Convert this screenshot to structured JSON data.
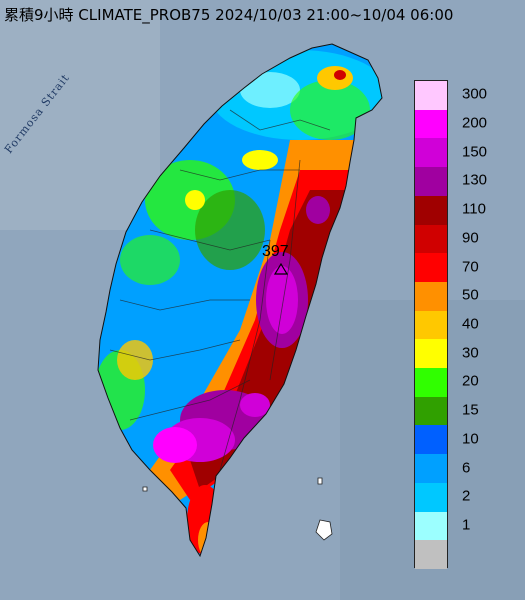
{
  "header": {
    "title": "累積9小時 CLIMATE_PROB75 2024/10/03 21:00~10/04 06:00"
  },
  "map": {
    "sea_label": "Formosa Strait",
    "peak": {
      "value": "397",
      "marker": "triangle-marker-icon"
    }
  },
  "legend": {
    "items": [
      {
        "label": "300",
        "color": "#ffc8ff"
      },
      {
        "label": "200",
        "color": "#ff00ff"
      },
      {
        "label": "150",
        "color": "#d000d8"
      },
      {
        "label": "130",
        "color": "#a000a0"
      },
      {
        "label": "110",
        "color": "#a00000"
      },
      {
        "label": "90",
        "color": "#d00000"
      },
      {
        "label": "70",
        "color": "#ff0000"
      },
      {
        "label": "50",
        "color": "#ff9000"
      },
      {
        "label": "40",
        "color": "#ffc800"
      },
      {
        "label": "30",
        "color": "#ffff00"
      },
      {
        "label": "20",
        "color": "#30ff00"
      },
      {
        "label": "15",
        "color": "#30a000"
      },
      {
        "label": "10",
        "color": "#0060ff"
      },
      {
        "label": "6",
        "color": "#00a0ff"
      },
      {
        "label": "2",
        "color": "#00c8ff"
      },
      {
        "label": "1",
        "color": "#9cffff"
      },
      {
        "label": "",
        "color": "#c0c0c0"
      }
    ]
  }
}
